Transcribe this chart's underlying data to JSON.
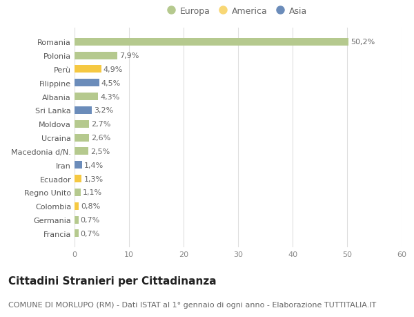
{
  "categories": [
    "Francia",
    "Germania",
    "Colombia",
    "Regno Unito",
    "Ecuador",
    "Iran",
    "Macedonia d/N.",
    "Ucraina",
    "Moldova",
    "Sri Lanka",
    "Albania",
    "Filippine",
    "Perù",
    "Polonia",
    "Romania"
  ],
  "values": [
    0.7,
    0.7,
    0.8,
    1.1,
    1.3,
    1.4,
    2.5,
    2.6,
    2.7,
    3.2,
    4.3,
    4.5,
    4.9,
    7.9,
    50.2
  ],
  "labels": [
    "0,7%",
    "0,7%",
    "0,8%",
    "1,1%",
    "1,3%",
    "1,4%",
    "2,5%",
    "2,6%",
    "2,7%",
    "3,2%",
    "4,3%",
    "4,5%",
    "4,9%",
    "7,9%",
    "50,2%"
  ],
  "colors": [
    "#b5c98e",
    "#b5c98e",
    "#f5c842",
    "#b5c98e",
    "#f5c842",
    "#6b8cba",
    "#b5c98e",
    "#b5c98e",
    "#b5c98e",
    "#6b8cba",
    "#b5c98e",
    "#6b8cba",
    "#f5c842",
    "#b5c98e",
    "#b5c98e"
  ],
  "legend_labels": [
    "Europa",
    "America",
    "Asia"
  ],
  "legend_colors": [
    "#b5c98e",
    "#f8d775",
    "#6b8cba"
  ],
  "title": "Cittadini Stranieri per Cittadinanza",
  "subtitle": "COMUNE DI MORLUPO (RM) - Dati ISTAT al 1° gennaio di ogni anno - Elaborazione TUTTITALIA.IT",
  "xlim": [
    0,
    60
  ],
  "xticks": [
    0,
    10,
    20,
    30,
    40,
    50,
    60
  ],
  "background_color": "#ffffff",
  "grid_color": "#dddddd",
  "bar_height": 0.55,
  "title_fontsize": 11,
  "subtitle_fontsize": 8,
  "label_fontsize": 8,
  "tick_fontsize": 8,
  "legend_fontsize": 9
}
